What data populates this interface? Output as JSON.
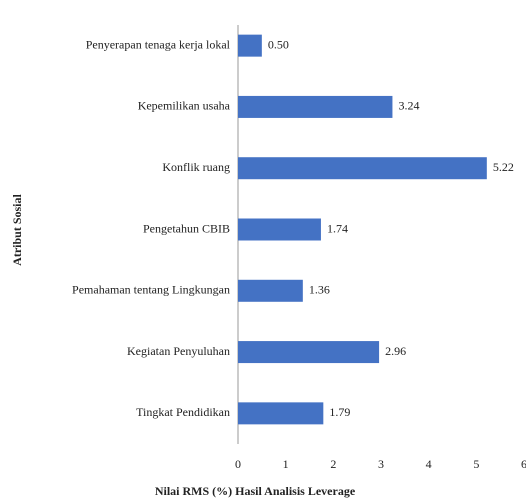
{
  "chart_data": {
    "type": "hbar",
    "xlabel": "Nilai RMS (%) Hasil Analisis Leverage",
    "ylabel": "Atribut Sosial",
    "categories": [
      "Penyerapan tenaga kerja lokal",
      "Kepemilikan usaha",
      "Konflik ruang",
      "Pengetahun CBIB",
      "Pemahaman tentang Lingkungan",
      "Kegiatan Penyuluhan",
      "Tingkat Pendidikan"
    ],
    "values": [
      0.5,
      3.24,
      5.22,
      1.74,
      1.36,
      2.96,
      1.79
    ],
    "value_labels": [
      "0.50",
      "3.24",
      "5.22",
      "1.74",
      "1.36",
      "2.96",
      "1.79"
    ],
    "color": "#4472c4",
    "xlim": [
      0,
      6
    ],
    "xticks": [
      0,
      1,
      2,
      3,
      4,
      5,
      6
    ]
  }
}
